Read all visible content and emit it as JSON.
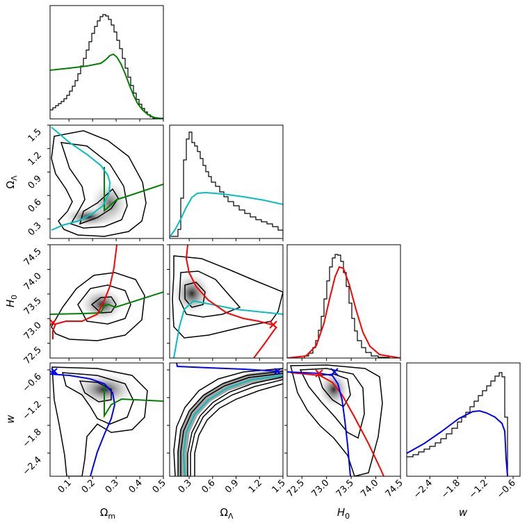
{
  "chart_data": {
    "type": "corner",
    "parameters": [
      {
        "key": "om",
        "label": "Ω",
        "sub": "m",
        "range": [
          0.02,
          0.5
        ],
        "ticks": [
          "0.1",
          "0.2",
          "0.3",
          "0.4",
          "0.5"
        ]
      },
      {
        "key": "ol",
        "label": "Ω",
        "sub": "Λ",
        "range": [
          0.05,
          1.5
        ],
        "ticks": [
          "0.3",
          "0.6",
          "0.9",
          "1.2",
          "1.5"
        ]
      },
      {
        "key": "h0",
        "label": "H",
        "sub": "0",
        "range": [
          72.2,
          74.5
        ],
        "ticks": [
          "72.5",
          "73.0",
          "73.5",
          "74.0",
          "74.5"
        ]
      },
      {
        "key": "w",
        "label": "w",
        "sub": "",
        "range": [
          -2.9,
          -0.45
        ],
        "ticks": [
          "−2.4",
          "−1.8",
          "−1.2",
          "−0.6"
        ]
      }
    ],
    "line_colors": {
      "om_constraint": "#008000",
      "ol_constraint": "#00bfbf",
      "h0_constraint": "#ff0000",
      "w_constraint": "#0000ff"
    },
    "histograms": {
      "om": {
        "peak": 0.25,
        "sigma": 0.065
      },
      "ol": {
        "peak": 0.27,
        "tail": "long-right"
      },
      "h0": {
        "peak": 73.07,
        "sigma": 0.3
      },
      "w": {
        "peak": -0.68,
        "skew": "left"
      }
    },
    "samples_2d": {
      "om_ol": {
        "best": [
          0.22,
          0.3
        ]
      },
      "om_h0": {
        "best": [
          0.25,
          73.1
        ]
      },
      "om_w": {
        "best": [
          0.24,
          -0.9
        ]
      },
      "ol_h0": {
        "best": [
          0.28,
          73.3
        ]
      },
      "ol_w": {
        "relation": "curved degeneracy"
      },
      "h0_w": {
        "best": [
          73.0,
          -0.85
        ]
      }
    },
    "markers": {
      "marker_symbol": "×"
    }
  }
}
